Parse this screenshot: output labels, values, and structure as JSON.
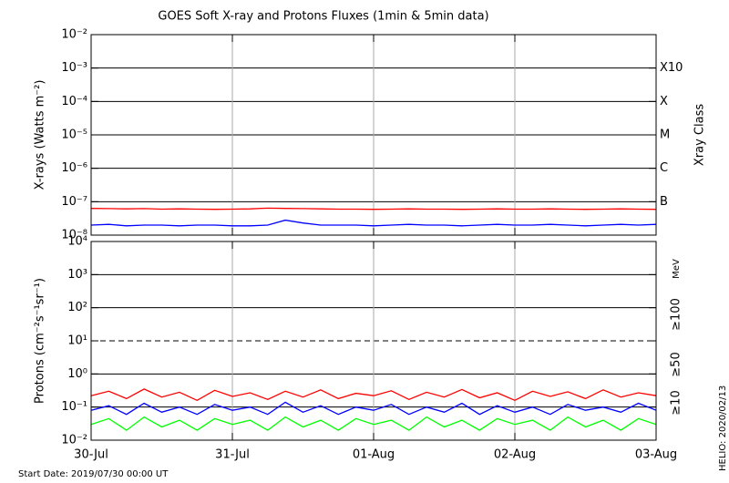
{
  "chart_data": [
    {
      "type": "line",
      "title": "GOES Soft X-ray and Protons Fluxes   (1min & 5min data)",
      "ylabel": "X-rays (Watts m⁻²)",
      "y2label": "Xray Class",
      "log_y": true,
      "grid": true,
      "xlim": [
        0,
        4
      ],
      "xticks": [
        0,
        1,
        2,
        3,
        4
      ],
      "ylim": [
        1e-08,
        0.01
      ],
      "yticks": [
        {
          "value": 1e-08,
          "label": "10⁻⁸"
        },
        {
          "value": 1e-07,
          "label": "10⁻⁷"
        },
        {
          "value": 1e-06,
          "label": "10⁻⁶"
        },
        {
          "value": 1e-05,
          "label": "10⁻⁵"
        },
        {
          "value": 0.0001,
          "label": "10⁻⁴"
        },
        {
          "value": 0.001,
          "label": "10⁻³"
        },
        {
          "value": 0.01,
          "label": "10⁻²"
        }
      ],
      "y2lim": [
        1e-08,
        0.01
      ],
      "y2ticks": [
        {
          "value": 0.001,
          "label": "X10"
        },
        {
          "value": 0.0001,
          "label": "X"
        },
        {
          "value": 1e-05,
          "label": "M"
        },
        {
          "value": 1e-06,
          "label": "C"
        },
        {
          "value": 1e-07,
          "label": "B"
        }
      ],
      "x": [
        0,
        0.125,
        0.25,
        0.375,
        0.5,
        0.625,
        0.75,
        0.875,
        1,
        1.125,
        1.25,
        1.375,
        1.5,
        1.625,
        1.75,
        1.875,
        2,
        2.125,
        2.25,
        2.375,
        2.5,
        2.625,
        2.75,
        2.875,
        3,
        3.125,
        3.25,
        3.375,
        3.5,
        3.625,
        3.75,
        3.875,
        4
      ],
      "series": [
        {
          "color": "#ff0000",
          "values": [
            6.3e-08,
            6.2e-08,
            6.1e-08,
            6.2e-08,
            6e-08,
            6.1e-08,
            6e-08,
            5.9e-08,
            6e-08,
            6.1e-08,
            6.4e-08,
            6.3e-08,
            6.2e-08,
            6.1e-08,
            6e-08,
            6e-08,
            5.9e-08,
            6e-08,
            6.1e-08,
            6e-08,
            6e-08,
            5.9e-08,
            6e-08,
            6.1e-08,
            6e-08,
            6e-08,
            6.1e-08,
            6e-08,
            5.9e-08,
            6e-08,
            6.1e-08,
            6e-08,
            5.9e-08
          ]
        },
        {
          "color": "#0000ff",
          "values": [
            2e-08,
            2.1e-08,
            1.9e-08,
            2e-08,
            2e-08,
            1.9e-08,
            2e-08,
            2e-08,
            1.9e-08,
            1.9e-08,
            2e-08,
            2.8e-08,
            2.3e-08,
            2e-08,
            2e-08,
            2e-08,
            1.9e-08,
            2e-08,
            2.1e-08,
            2e-08,
            2e-08,
            1.9e-08,
            2e-08,
            2.1e-08,
            2e-08,
            2e-08,
            2.1e-08,
            2e-08,
            1.9e-08,
            2e-08,
            2.1e-08,
            2e-08,
            2.1e-08
          ]
        }
      ]
    },
    {
      "type": "line",
      "ylabel": "Protons (cm⁻²s⁻¹sr⁻¹)",
      "legend_title": "MeV",
      "log_y": true,
      "grid": true,
      "threshold": 10,
      "xlim": [
        0,
        4
      ],
      "xticks": [
        {
          "value": 0,
          "label": "30-Jul"
        },
        {
          "value": 1,
          "label": "31-Jul"
        },
        {
          "value": 2,
          "label": "01-Aug"
        },
        {
          "value": 3,
          "label": "02-Aug"
        },
        {
          "value": 4,
          "label": "03-Aug"
        }
      ],
      "ylim": [
        0.01,
        10000
      ],
      "yticks": [
        {
          "value": 0.01,
          "label": "10⁻²"
        },
        {
          "value": 0.1,
          "label": "10⁻¹"
        },
        {
          "value": 1,
          "label": "10⁰"
        },
        {
          "value": 10,
          "label": "10¹"
        },
        {
          "value": 100,
          "label": "10²"
        },
        {
          "value": 1000,
          "label": "10³"
        },
        {
          "value": 10000,
          "label": "10⁴"
        }
      ],
      "x": [
        0,
        0.125,
        0.25,
        0.375,
        0.5,
        0.625,
        0.75,
        0.875,
        1,
        1.125,
        1.25,
        1.375,
        1.5,
        1.625,
        1.75,
        1.875,
        2,
        2.125,
        2.25,
        2.375,
        2.5,
        2.625,
        2.75,
        2.875,
        3,
        3.125,
        3.25,
        3.375,
        3.5,
        3.625,
        3.75,
        3.875,
        4
      ],
      "series": [
        {
          "name": "≥10",
          "color": "#ff0000",
          "values": [
            0.22,
            0.3,
            0.18,
            0.35,
            0.2,
            0.28,
            0.16,
            0.32,
            0.21,
            0.27,
            0.17,
            0.3,
            0.2,
            0.33,
            0.18,
            0.26,
            0.22,
            0.31,
            0.17,
            0.28,
            0.2,
            0.34,
            0.19,
            0.27,
            0.16,
            0.3,
            0.21,
            0.29,
            0.18,
            0.33,
            0.2,
            0.27,
            0.22
          ]
        },
        {
          "name": "≥50",
          "color": "#0000ff",
          "values": [
            0.08,
            0.11,
            0.06,
            0.13,
            0.07,
            0.1,
            0.06,
            0.12,
            0.08,
            0.1,
            0.06,
            0.14,
            0.07,
            0.11,
            0.06,
            0.1,
            0.08,
            0.12,
            0.06,
            0.1,
            0.07,
            0.13,
            0.06,
            0.11,
            0.07,
            0.1,
            0.06,
            0.12,
            0.08,
            0.1,
            0.07,
            0.13,
            0.08
          ]
        },
        {
          "name": "≥100",
          "color": "#00ff00",
          "values": [
            0.03,
            0.045,
            0.02,
            0.05,
            0.025,
            0.04,
            0.02,
            0.045,
            0.03,
            0.04,
            0.02,
            0.05,
            0.025,
            0.04,
            0.02,
            0.045,
            0.03,
            0.04,
            0.02,
            0.05,
            0.025,
            0.04,
            0.02,
            0.045,
            0.03,
            0.04,
            0.02,
            0.05,
            0.025,
            0.04,
            0.02,
            0.045,
            0.03
          ]
        }
      ]
    }
  ],
  "footer": {
    "start_date": "Start Date: 2019/07/30 00:00 UT",
    "stamp": "HELIO: 2020/02/13"
  }
}
